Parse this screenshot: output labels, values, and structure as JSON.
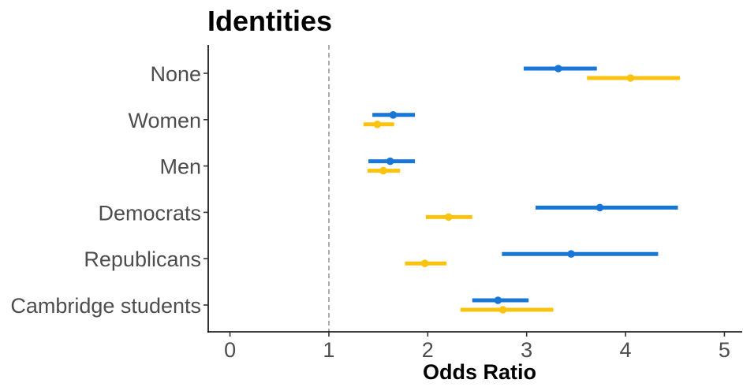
{
  "chart_data": {
    "type": "forest",
    "title": "Identities",
    "xlabel": "Odds Ratio",
    "ylabel": "",
    "xlim": [
      -0.22,
      5.18
    ],
    "x_ticks": [
      0,
      1,
      2,
      3,
      4,
      5
    ],
    "reference_line": 1,
    "grid": false,
    "legend": "none",
    "categories": [
      "None",
      "Women",
      "Men",
      "Democrats",
      "Republicans",
      "Cambridge students"
    ],
    "series": [
      {
        "color": "#1877d6",
        "estimates": [
          3.32,
          1.65,
          1.62,
          3.74,
          3.45,
          2.71
        ],
        "lower": [
          2.97,
          1.44,
          1.4,
          3.09,
          2.75,
          2.45
        ],
        "upper": [
          3.71,
          1.87,
          1.87,
          4.53,
          4.33,
          3.02
        ]
      },
      {
        "color": "#fbc30d",
        "estimates": [
          4.05,
          1.49,
          1.55,
          2.21,
          1.97,
          2.76
        ],
        "lower": [
          3.61,
          1.35,
          1.39,
          1.98,
          1.77,
          2.33
        ],
        "upper": [
          4.55,
          1.66,
          1.72,
          2.45,
          2.19,
          3.27
        ]
      }
    ]
  }
}
